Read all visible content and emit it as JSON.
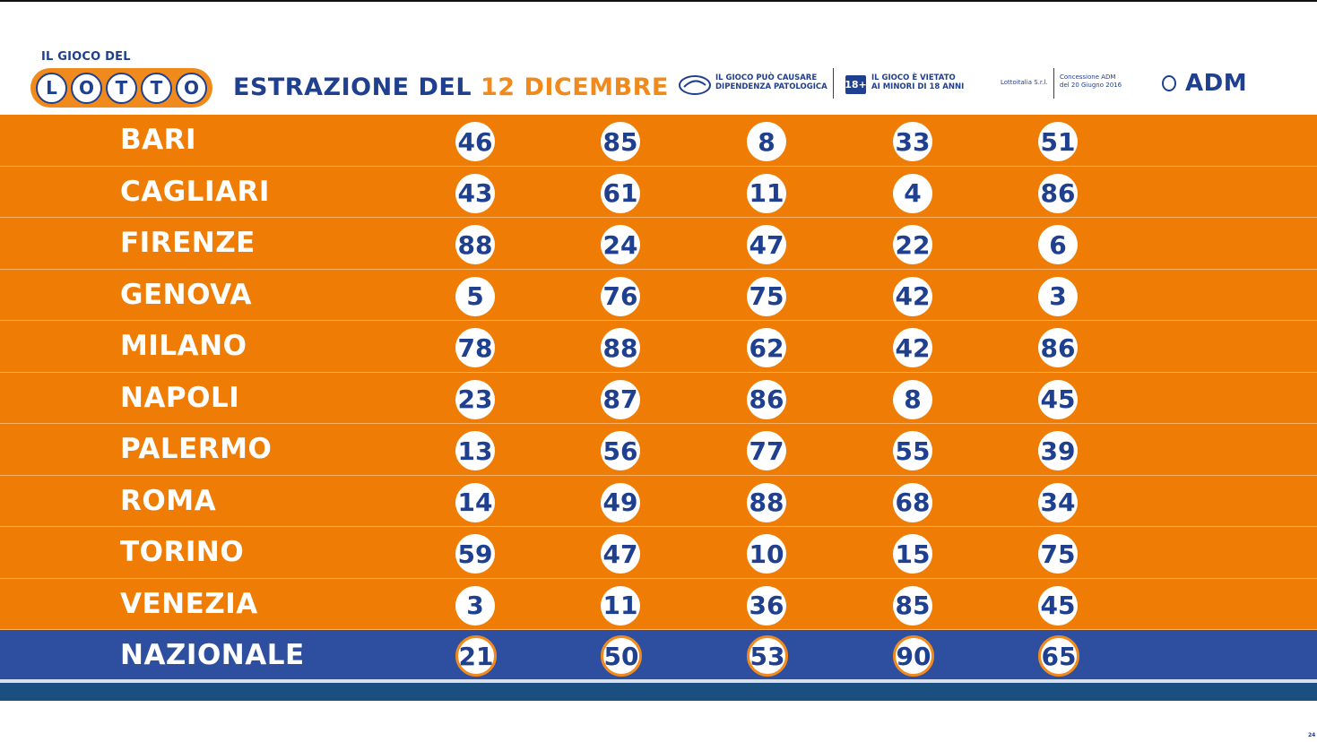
{
  "header": {
    "logo_top": "IL GIOCO DEL",
    "logo_letters": [
      "L",
      "O",
      "T",
      "T",
      "O"
    ],
    "title_prefix": "ESTRAZIONE DEL",
    "title_date": "12 DICEMBRE",
    "warning_1_line1": "IL GIOCO PUÒ CAUSARE",
    "warning_1_line2": "DIPENDENZA PATOLOGICA",
    "badge": "18+",
    "warning_2_line1": "IL GIOCO È VIETATO",
    "warning_2_line2": "AI MINORI DI 18 ANNI",
    "operator": "Lottoitalia S.r.l.",
    "concession_line1": "Concessione ADM",
    "concession_line2": "del 20 Giugno 2016",
    "adm": "ADM"
  },
  "colors": {
    "orange": "#ef7d05",
    "blue": "#1f3f8f",
    "national": "#2e4fa0"
  },
  "draws": [
    {
      "city": "BARI",
      "numbers": [
        46,
        85,
        8,
        33,
        51
      ]
    },
    {
      "city": "CAGLIARI",
      "numbers": [
        43,
        61,
        11,
        4,
        86
      ]
    },
    {
      "city": "FIRENZE",
      "numbers": [
        88,
        24,
        47,
        22,
        6
      ]
    },
    {
      "city": "GENOVA",
      "numbers": [
        5,
        76,
        75,
        42,
        3
      ]
    },
    {
      "city": "MILANO",
      "numbers": [
        78,
        88,
        62,
        42,
        86
      ]
    },
    {
      "city": "NAPOLI",
      "numbers": [
        23,
        87,
        86,
        8,
        45
      ]
    },
    {
      "city": "PALERMO",
      "numbers": [
        13,
        56,
        77,
        55,
        39
      ]
    },
    {
      "city": "ROMA",
      "numbers": [
        14,
        49,
        88,
        68,
        34
      ]
    },
    {
      "city": "TORINO",
      "numbers": [
        59,
        47,
        10,
        15,
        75
      ]
    },
    {
      "city": "VENEZIA",
      "numbers": [
        3,
        11,
        36,
        85,
        45
      ]
    },
    {
      "city": "NAZIONALE",
      "numbers": [
        21,
        50,
        53,
        90,
        65
      ]
    }
  ],
  "page_number": "24"
}
